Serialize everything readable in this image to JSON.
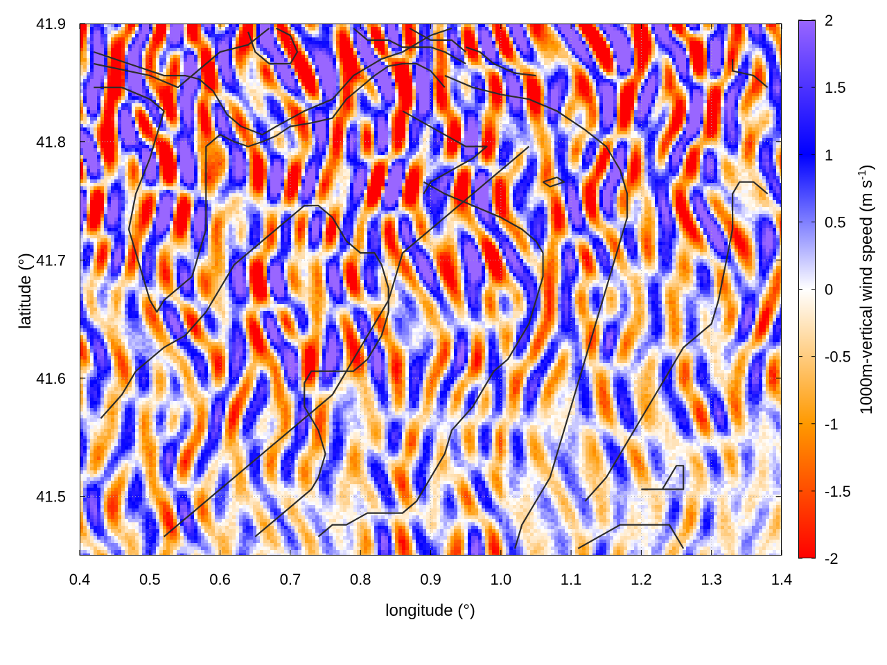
{
  "chart_data": {
    "type": "heatmap",
    "xlabel": "longitude (°)",
    "ylabel": "latitude (°)",
    "colorbar_label": "1000m-vertical wind speed (m s",
    "colorbar_label_sup": "-1",
    "colorbar_label_end": ")",
    "xlim": [
      0.4,
      1.4
    ],
    "ylim": [
      41.45,
      41.9
    ],
    "x_ticks": [
      {
        "v": 0.4,
        "label": "0.4"
      },
      {
        "v": 0.5,
        "label": "0.5"
      },
      {
        "v": 0.6,
        "label": "0.6"
      },
      {
        "v": 0.7,
        "label": "0.7"
      },
      {
        "v": 0.8,
        "label": "0.8"
      },
      {
        "v": 0.9,
        "label": "0.9"
      },
      {
        "v": 1.0,
        "label": "1.0"
      },
      {
        "v": 1.1,
        "label": "1.1"
      },
      {
        "v": 1.2,
        "label": "1.2"
      },
      {
        "v": 1.3,
        "label": "1.3"
      },
      {
        "v": 1.4,
        "label": "1.4"
      }
    ],
    "y_ticks": [
      {
        "v": 41.5,
        "label": "41.5"
      },
      {
        "v": 41.6,
        "label": "41.6"
      },
      {
        "v": 41.7,
        "label": "41.7"
      },
      {
        "v": 41.8,
        "label": "41.8"
      },
      {
        "v": 41.9,
        "label": "41.9"
      }
    ],
    "colorbar_range": [
      -2,
      2
    ],
    "colorbar_ticks": [
      {
        "v": 2,
        "label": "2"
      },
      {
        "v": 1.5,
        "label": "1.5"
      },
      {
        "v": 1,
        "label": "1"
      },
      {
        "v": 0.5,
        "label": "0.5"
      },
      {
        "v": 0,
        "label": "0"
      },
      {
        "v": -0.5,
        "label": "-0.5"
      },
      {
        "v": -1,
        "label": "-1"
      },
      {
        "v": -1.5,
        "label": "-1.5"
      },
      {
        "v": -2,
        "label": "-2"
      }
    ],
    "colormap": {
      "stops": [
        {
          "v": -2,
          "color": "#ff0000"
        },
        {
          "v": -1,
          "color": "#ff9900"
        },
        {
          "v": 0,
          "color": "#ffffff"
        },
        {
          "v": 1,
          "color": "#0000ff"
        },
        {
          "v": 2,
          "color": "#9966ff"
        }
      ],
      "over_color": "#9966ff"
    },
    "grid": true,
    "contours": [
      [
        [
          0.42,
          41.866
        ],
        [
          0.5,
          41.856
        ],
        [
          0.54,
          41.846
        ],
        [
          0.56,
          41.856
        ],
        [
          0.6,
          41.876
        ],
        [
          0.64,
          41.882
        ],
        [
          0.67,
          41.896
        ]
      ],
      [
        [
          0.42,
          41.876
        ],
        [
          0.47,
          41.866
        ],
        [
          0.52,
          41.856
        ],
        [
          0.55,
          41.856
        ],
        [
          0.57,
          41.853
        ],
        [
          0.59,
          41.843
        ],
        [
          0.61,
          41.823
        ],
        [
          0.63,
          41.813
        ],
        [
          0.66,
          41.806
        ],
        [
          0.68,
          41.813
        ],
        [
          0.72,
          41.826
        ],
        [
          0.76,
          41.836
        ],
        [
          0.79,
          41.856
        ],
        [
          0.83,
          41.87
        ],
        [
          0.86,
          41.876
        ],
        [
          0.9,
          41.89
        ],
        [
          0.93,
          41.896
        ]
      ],
      [
        [
          0.42,
          41.846
        ],
        [
          0.46,
          41.846
        ],
        [
          0.5,
          41.836
        ],
        [
          0.52,
          41.826
        ],
        [
          0.51,
          41.806
        ],
        [
          0.5,
          41.786
        ],
        [
          0.48,
          41.756
        ],
        [
          0.47,
          41.726
        ],
        [
          0.48,
          41.706
        ],
        [
          0.49,
          41.686
        ],
        [
          0.5,
          41.666
        ],
        [
          0.51,
          41.656
        ],
        [
          0.52,
          41.666
        ],
        [
          0.54,
          41.676
        ],
        [
          0.56,
          41.686
        ],
        [
          0.58,
          41.726
        ],
        [
          0.58,
          41.766
        ],
        [
          0.58,
          41.796
        ],
        [
          0.6,
          41.806
        ],
        [
          0.62,
          41.8
        ],
        [
          0.64,
          41.796
        ],
        [
          0.66,
          41.8
        ],
        [
          0.68,
          41.805
        ],
        [
          0.7,
          41.813
        ],
        [
          0.73,
          41.816
        ],
        [
          0.76,
          41.82
        ],
        [
          0.78,
          41.836
        ],
        [
          0.8,
          41.846
        ],
        [
          0.82,
          41.856
        ],
        [
          0.84,
          41.864
        ],
        [
          0.86,
          41.866
        ],
        [
          0.88,
          41.866
        ],
        [
          0.9,
          41.86
        ],
        [
          0.92,
          41.846
        ]
      ],
      [
        [
          0.68,
          41.896
        ],
        [
          0.7,
          41.89
        ],
        [
          0.71,
          41.876
        ],
        [
          0.7,
          41.866
        ],
        [
          0.67,
          41.866
        ],
        [
          0.65,
          41.876
        ],
        [
          0.64,
          41.893
        ]
      ],
      [
        [
          0.79,
          41.896
        ],
        [
          0.81,
          41.886
        ],
        [
          0.84,
          41.886
        ],
        [
          0.86,
          41.88
        ],
        [
          0.9,
          41.88
        ],
        [
          0.92,
          41.876
        ],
        [
          0.95,
          41.866
        ]
      ],
      [
        [
          0.87,
          41.896
        ],
        [
          0.9,
          41.886
        ],
        [
          0.93,
          41.886
        ],
        [
          0.95,
          41.876
        ]
      ],
      [
        [
          0.95,
          41.88
        ],
        [
          0.97,
          41.876
        ],
        [
          0.99,
          41.866
        ],
        [
          1.02,
          41.858
        ],
        [
          1.05,
          41.856
        ]
      ],
      [
        [
          1.33,
          41.87
        ],
        [
          1.33,
          41.86
        ],
        [
          1.36,
          41.856
        ],
        [
          1.38,
          41.846
        ]
      ],
      [
        [
          0.92,
          41.856
        ],
        [
          0.96,
          41.846
        ],
        [
          1.0,
          41.84
        ],
        [
          1.04,
          41.836
        ],
        [
          1.08,
          41.826
        ],
        [
          1.12,
          41.81
        ],
        [
          1.15,
          41.796
        ],
        [
          1.17,
          41.776
        ],
        [
          1.18,
          41.756
        ],
        [
          1.18,
          41.736
        ],
        [
          1.17,
          41.716
        ],
        [
          1.16,
          41.696
        ],
        [
          1.15,
          41.676
        ],
        [
          1.14,
          41.656
        ],
        [
          1.13,
          41.636
        ],
        [
          1.12,
          41.616
        ],
        [
          1.11,
          41.596
        ],
        [
          1.1,
          41.576
        ],
        [
          1.09,
          41.556
        ],
        [
          1.08,
          41.536
        ],
        [
          1.07,
          41.516
        ],
        [
          1.05,
          41.496
        ],
        [
          1.03,
          41.476
        ],
        [
          1.02,
          41.456
        ]
      ],
      [
        [
          0.86,
          41.826
        ],
        [
          0.89,
          41.816
        ],
        [
          0.92,
          41.806
        ],
        [
          0.95,
          41.796
        ],
        [
          0.98,
          41.796
        ],
        [
          0.96,
          41.786
        ],
        [
          0.93,
          41.776
        ],
        [
          0.9,
          41.766
        ],
        [
          0.89,
          41.756
        ]
      ],
      [
        [
          0.89,
          41.766
        ],
        [
          0.92,
          41.756
        ],
        [
          0.96,
          41.746
        ],
        [
          1.0,
          41.736
        ],
        [
          1.03,
          41.726
        ],
        [
          1.05,
          41.716
        ],
        [
          1.06,
          41.706
        ],
        [
          1.06,
          41.686
        ],
        [
          1.05,
          41.666
        ],
        [
          1.04,
          41.646
        ],
        [
          1.02,
          41.626
        ],
        [
          1.01,
          41.616
        ],
        [
          0.99,
          41.606
        ],
        [
          0.98,
          41.596
        ],
        [
          0.96,
          41.576
        ],
        [
          0.93,
          41.556
        ],
        [
          0.92,
          41.536
        ],
        [
          0.9,
          41.516
        ],
        [
          0.88,
          41.496
        ],
        [
          0.86,
          41.486
        ],
        [
          0.84,
          41.486
        ],
        [
          0.81,
          41.486
        ],
        [
          0.78,
          41.476
        ],
        [
          0.76,
          41.476
        ],
        [
          0.74,
          41.466
        ]
      ],
      [
        [
          0.43,
          41.566
        ],
        [
          0.46,
          41.586
        ],
        [
          0.48,
          41.606
        ],
        [
          0.5,
          41.616
        ],
        [
          0.52,
          41.626
        ],
        [
          0.55,
          41.636
        ],
        [
          0.58,
          41.656
        ],
        [
          0.6,
          41.676
        ],
        [
          0.62,
          41.696
        ],
        [
          0.64,
          41.706
        ],
        [
          0.66,
          41.716
        ],
        [
          0.68,
          41.726
        ],
        [
          0.7,
          41.736
        ],
        [
          0.72,
          41.746
        ],
        [
          0.74,
          41.746
        ],
        [
          0.76,
          41.736
        ],
        [
          0.78,
          41.716
        ],
        [
          0.8,
          41.706
        ],
        [
          0.82,
          41.706
        ],
        [
          0.83,
          41.696
        ],
        [
          0.84,
          41.676
        ],
        [
          0.84,
          41.656
        ],
        [
          0.83,
          41.636
        ],
        [
          0.81,
          41.616
        ],
        [
          0.79,
          41.606
        ],
        [
          0.76,
          41.606
        ],
        [
          0.73,
          41.606
        ],
        [
          0.72,
          41.596
        ],
        [
          0.72,
          41.576
        ],
        [
          0.74,
          41.556
        ],
        [
          0.75,
          41.536
        ],
        [
          0.74,
          41.516
        ],
        [
          0.73,
          41.506
        ],
        [
          0.71,
          41.496
        ],
        [
          0.69,
          41.486
        ],
        [
          0.67,
          41.476
        ],
        [
          0.65,
          41.466
        ]
      ],
      [
        [
          0.52,
          41.466
        ],
        [
          0.54,
          41.476
        ],
        [
          0.56,
          41.486
        ],
        [
          0.58,
          41.496
        ],
        [
          0.6,
          41.506
        ],
        [
          0.62,
          41.516
        ],
        [
          0.64,
          41.526
        ],
        [
          0.66,
          41.536
        ],
        [
          0.68,
          41.546
        ],
        [
          0.7,
          41.556
        ],
        [
          0.72,
          41.566
        ],
        [
          0.74,
          41.576
        ],
        [
          0.76,
          41.586
        ],
        [
          0.78,
          41.606
        ],
        [
          0.8,
          41.626
        ],
        [
          0.82,
          41.646
        ],
        [
          0.84,
          41.666
        ],
        [
          0.85,
          41.686
        ],
        [
          0.86,
          41.706
        ],
        [
          0.88,
          41.716
        ],
        [
          0.9,
          41.726
        ],
        [
          0.92,
          41.736
        ],
        [
          0.94,
          41.746
        ],
        [
          0.96,
          41.756
        ],
        [
          0.98,
          41.766
        ],
        [
          1.0,
          41.776
        ],
        [
          1.02,
          41.786
        ],
        [
          1.04,
          41.796
        ]
      ],
      [
        [
          1.06,
          41.766
        ],
        [
          1.08,
          41.77
        ],
        [
          1.09,
          41.766
        ],
        [
          1.07,
          41.762
        ],
        [
          1.06,
          41.766
        ]
      ],
      [
        [
          1.11,
          41.456
        ],
        [
          1.14,
          41.466
        ],
        [
          1.17,
          41.476
        ],
        [
          1.2,
          41.476
        ],
        [
          1.24,
          41.476
        ],
        [
          1.26,
          41.456
        ]
      ],
      [
        [
          1.2,
          41.506
        ],
        [
          1.23,
          41.506
        ],
        [
          1.25,
          41.526
        ],
        [
          1.26,
          41.526
        ],
        [
          1.26,
          41.506
        ],
        [
          1.23,
          41.506
        ]
      ],
      [
        [
          1.12,
          41.496
        ],
        [
          1.15,
          41.516
        ],
        [
          1.18,
          41.546
        ],
        [
          1.21,
          41.576
        ],
        [
          1.24,
          41.606
        ],
        [
          1.26,
          41.626
        ],
        [
          1.28,
          41.636
        ],
        [
          1.3,
          41.646
        ],
        [
          1.31,
          41.666
        ],
        [
          1.32,
          41.696
        ],
        [
          1.33,
          41.726
        ],
        [
          1.33,
          41.756
        ],
        [
          1.34,
          41.766
        ],
        [
          1.36,
          41.766
        ],
        [
          1.38,
          41.756
        ]
      ]
    ]
  }
}
